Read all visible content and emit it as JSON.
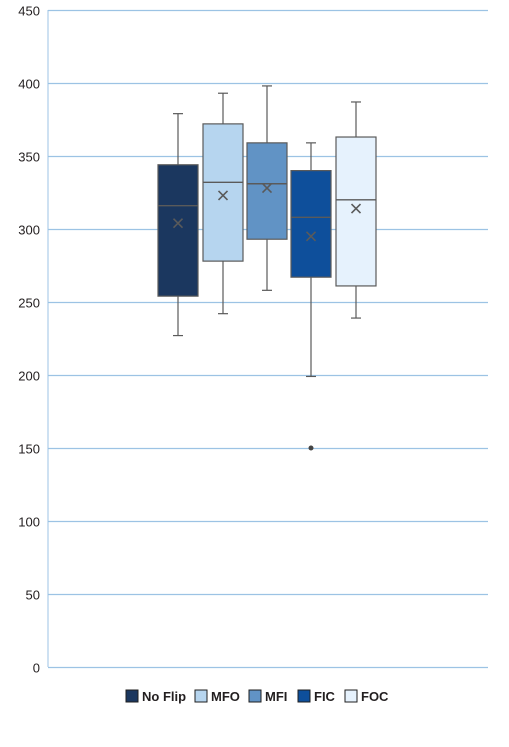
{
  "chart_data": {
    "type": "box",
    "title": "",
    "xlabel": "",
    "ylabel": "",
    "ylim": [
      0,
      450
    ],
    "yticks": [
      0,
      50,
      100,
      150,
      200,
      250,
      300,
      350,
      400,
      450
    ],
    "grid": true,
    "legend_position": "bottom",
    "series": [
      {
        "name": "No Flip",
        "color": "#1b375f",
        "min": 227,
        "q1": 254,
        "median": 316,
        "q3": 344,
        "max": 379,
        "mean": 304,
        "outliers": []
      },
      {
        "name": "MFO",
        "color": "#b6d5ef",
        "min": 242,
        "q1": 278,
        "median": 332,
        "q3": 372,
        "max": 393,
        "mean": 323,
        "outliers": []
      },
      {
        "name": "MFI",
        "color": "#6193c5",
        "min": 258,
        "q1": 293,
        "median": 331,
        "q3": 359,
        "max": 398,
        "mean": 328,
        "outliers": []
      },
      {
        "name": "FIC",
        "color": "#0e4f9b",
        "min": 199,
        "q1": 267,
        "median": 308,
        "q3": 340,
        "max": 359,
        "mean": 295,
        "outliers": [
          150
        ]
      },
      {
        "name": "FOC",
        "color": "#e6f2fd",
        "min": 239,
        "q1": 261,
        "median": 320,
        "q3": 363,
        "max": 387,
        "mean": 314,
        "outliers": []
      }
    ]
  }
}
